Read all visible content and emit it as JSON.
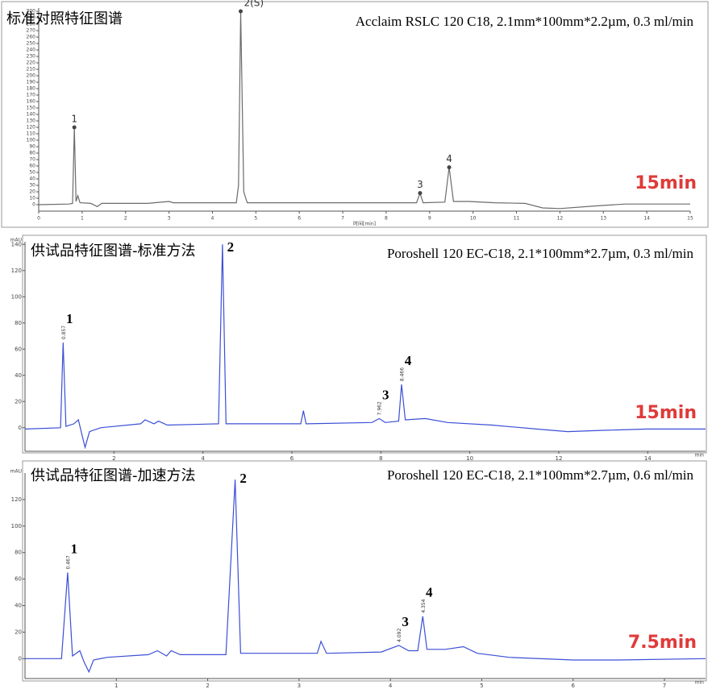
{
  "chart_data": [
    {
      "type": "line",
      "title": "标准对照特征图谱",
      "subtitle": "Acclaim RSLC 120 C18, 2.1mm*100mm*2.2µm, 0.3 ml/min",
      "annotation": "15min",
      "x_label": "时间[min]",
      "color": "#6b6b6b",
      "peak_style": "marker",
      "x": [
        0,
        0.7,
        0.78,
        0.82,
        0.86,
        0.9,
        0.95,
        1.2,
        1.35,
        1.45,
        2.5,
        3.0,
        3.1,
        4.55,
        4.6,
        4.65,
        4.72,
        4.8,
        6.8,
        7.5,
        8.7,
        8.78,
        8.85,
        9.35,
        9.45,
        9.55,
        9.9,
        10.5,
        11.2,
        11.6,
        12,
        12.8,
        13.5,
        15
      ],
      "values": [
        0,
        1,
        2,
        120,
        5,
        14,
        3,
        2,
        -3,
        2,
        2,
        5,
        3,
        3,
        30,
        300,
        20,
        3,
        3,
        3,
        3,
        18,
        3,
        4,
        58,
        5,
        5,
        3,
        2,
        -5,
        -6,
        -2,
        1,
        1
      ],
      "peaks": [
        {
          "label": "1",
          "x": 0.82,
          "y": 120
        },
        {
          "label": "2(S)",
          "x": 4.65,
          "y": 300
        },
        {
          "label": "3",
          "x": 8.78,
          "y": 18
        },
        {
          "label": "4",
          "x": 9.45,
          "y": 58
        }
      ],
      "xlim": [
        0,
        15
      ],
      "ylim": [
        -10,
        305
      ],
      "xticks": [
        0,
        1,
        2,
        3,
        4,
        5,
        6,
        7,
        8,
        9,
        10,
        11,
        12,
        13,
        14,
        15
      ],
      "yticks": [
        0,
        10,
        20,
        30,
        40,
        50,
        60,
        70,
        80,
        90,
        100,
        110,
        120,
        130,
        140,
        150,
        160,
        170,
        180,
        190,
        200,
        210,
        220,
        230,
        240,
        250,
        260,
        270,
        280,
        290,
        300
      ]
    },
    {
      "type": "line",
      "title": "供试品特征图谱-标准方法",
      "subtitle": "Poroshell 120 EC-C18,  2.1*100mm*2.7µm, 0.3 ml/min",
      "annotation": "15min",
      "x_label": "min",
      "y_label": "mAU",
      "color": "#3b4fd6",
      "peak_style": "bold",
      "x": [
        0,
        0.8,
        0.857,
        0.92,
        1.1,
        1.2,
        1.3,
        1.35,
        1.45,
        1.7,
        2.6,
        2.7,
        2.9,
        3.0,
        3.2,
        4.35,
        4.44,
        4.52,
        6.2,
        6.26,
        6.32,
        7.8,
        7.962,
        8.1,
        8.4,
        8.466,
        8.55,
        9.0,
        9.5,
        10.5,
        11.5,
        12.2,
        13,
        14,
        15.3
      ],
      "values": [
        -1,
        0,
        65,
        1,
        3,
        6,
        -8,
        -15,
        -3,
        0,
        3,
        6,
        3,
        5,
        2,
        3,
        140,
        3,
        3,
        13,
        3,
        4,
        7,
        4,
        5,
        33,
        6,
        7,
        4,
        2,
        -1,
        -3,
        -2,
        -1,
        -1
      ],
      "peaks": [
        {
          "label": "1",
          "x": 0.857,
          "y": 65,
          "rt": 0.857
        },
        {
          "label": "2",
          "x": 4.44,
          "y": 140
        },
        {
          "label": "3",
          "x": 7.962,
          "y": 7,
          "rt": 7.962
        },
        {
          "label": "4",
          "x": 8.466,
          "y": 33,
          "rt": 8.466
        }
      ],
      "xlim": [
        0,
        15.3
      ],
      "ylim": [
        -18,
        142
      ],
      "xticks": [
        2,
        4,
        6,
        8,
        10,
        12,
        14
      ],
      "yticks": [
        0,
        20,
        40,
        60,
        80,
        100,
        120,
        140
      ]
    },
    {
      "type": "line",
      "title": "供试品特征图谱-加速方法",
      "subtitle": "Poroshell 120 EC-C18,  2.1*100mm*2.7µm, 0.6 ml/min",
      "annotation": "7.5min",
      "x_label": "min",
      "y_label": "mAU",
      "color": "#3b4fd6",
      "peak_style": "bold",
      "x": [
        0,
        0.4,
        0.467,
        0.52,
        0.6,
        0.65,
        0.7,
        0.75,
        0.9,
        1.35,
        1.45,
        1.55,
        1.6,
        1.7,
        2.2,
        2.3,
        2.36,
        3.2,
        3.24,
        3.3,
        3.9,
        4.092,
        4.2,
        4.3,
        4.354,
        4.4,
        4.6,
        4.8,
        4.95,
        5.3,
        6,
        6.5,
        7.45
      ],
      "values": [
        0,
        0,
        65,
        2,
        6,
        -3,
        -10,
        -1,
        1,
        3,
        6,
        2,
        6,
        3,
        3,
        135,
        4,
        4,
        13,
        4,
        5,
        10,
        6,
        6,
        32,
        7,
        7,
        9,
        4,
        1,
        -1,
        -1,
        0
      ],
      "peaks": [
        {
          "label": "1",
          "x": 0.467,
          "y": 65,
          "rt": 0.467
        },
        {
          "label": "2",
          "x": 2.3,
          "y": 135
        },
        {
          "label": "3",
          "x": 4.092,
          "y": 10,
          "rt": 4.092
        },
        {
          "label": "4",
          "x": 4.354,
          "y": 32,
          "rt": 4.354
        }
      ],
      "xlim": [
        0,
        7.45
      ],
      "ylim": [
        -15,
        140
      ],
      "xticks": [
        1,
        2,
        3,
        4,
        5,
        6,
        7
      ],
      "yticks": [
        0,
        20,
        40,
        60,
        80,
        100,
        120
      ]
    }
  ]
}
